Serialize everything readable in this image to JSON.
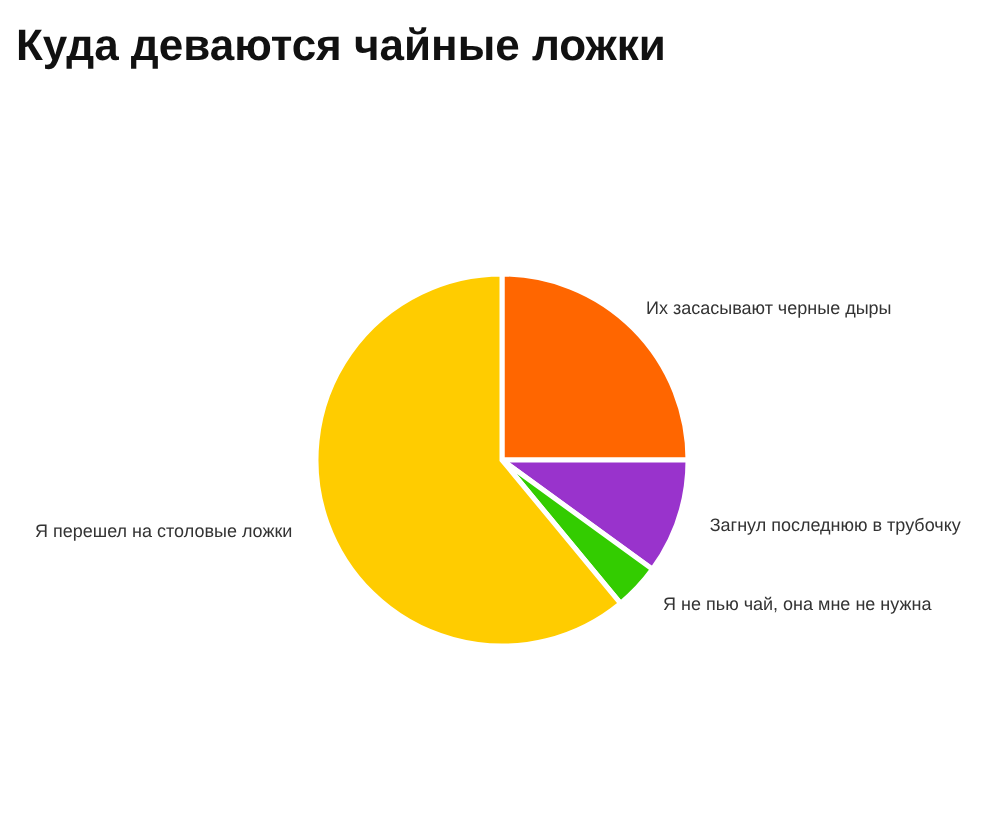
{
  "chart_data": {
    "type": "pie",
    "title": "Куда деваются чайные ложки",
    "categories": [
      "Их засасывают черные дыры",
      "Загнул последнюю в трубочку",
      "Я не пью чай, она мне не нужна",
      "Я перешел на столовые ложки"
    ],
    "values": [
      25,
      10,
      4,
      61
    ],
    "colors": [
      "#ff6600",
      "#9933cc",
      "#33cc00",
      "#ffcc00"
    ]
  }
}
